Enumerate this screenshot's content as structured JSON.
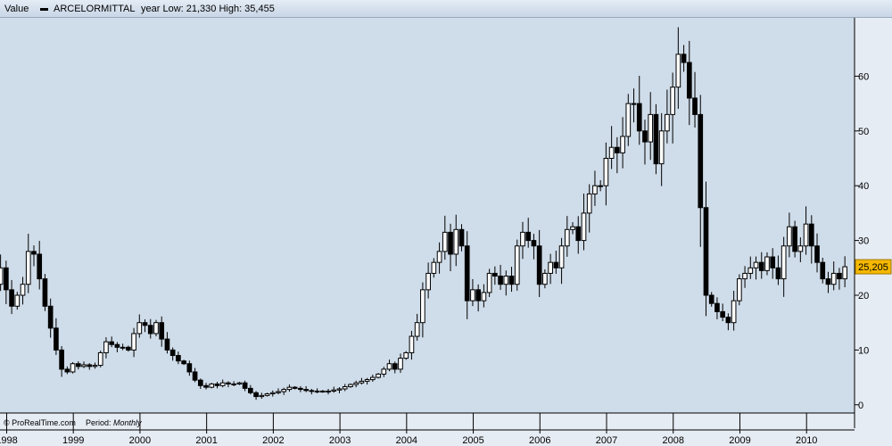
{
  "header": {
    "value_label": "Value",
    "series_name": "ARCELORMITTAL",
    "stats_text": "year Low: 21,330 High: 35,455"
  },
  "footer": {
    "copyright": "© ProRealTime.com",
    "period_label": "Period:",
    "period_value": "Monthly"
  },
  "colors": {
    "plot_bg": "#cfdce9",
    "outer_bg": "#e6ecf4",
    "up_fill": "#ffffff",
    "down_fill": "#000000",
    "last_price_bg": "#f5b800"
  },
  "chart_data": {
    "type": "candlestick",
    "title": "ARCELORMITTAL",
    "period": "Monthly",
    "x_ticks": [
      "1998",
      "1999",
      "2000",
      "2001",
      "2002",
      "2003",
      "2004",
      "2005",
      "2006",
      "2007",
      "2008",
      "2009",
      "2010"
    ],
    "x_range": [
      1997.9,
      2010.72
    ],
    "y_ticks": [
      0,
      10,
      20,
      30,
      40,
      50,
      60
    ],
    "ylim": [
      -1.5,
      70
    ],
    "last_value": 25.205,
    "last_value_label": "25,205",
    "close_series": [
      24.5,
      22.0,
      25.0,
      21.0,
      18.0,
      20.0,
      22.0,
      28.0,
      27.5,
      23.0,
      18.0,
      14.0,
      10.0,
      6.5,
      6.0,
      7.5,
      7.0,
      7.3,
      7.0,
      7.2,
      9.5,
      11.5,
      11.0,
      10.5,
      10.5,
      10.0,
      13.0,
      15.0,
      14.5,
      13.0,
      15.0,
      12.0,
      10.0,
      9.0,
      8.0,
      7.5,
      6.0,
      4.5,
      3.5,
      3.2,
      3.8,
      3.5,
      4.0,
      3.8,
      3.8,
      4.0,
      3.0,
      2.2,
      1.5,
      1.7,
      2.0,
      2.2,
      2.4,
      2.8,
      3.2,
      3.0,
      2.8,
      2.6,
      2.5,
      2.5,
      2.4,
      2.5,
      2.7,
      2.9,
      3.3,
      3.7,
      4.0,
      4.3,
      4.6,
      5.0,
      5.6,
      6.5,
      7.5,
      6.5,
      8.5,
      9.5,
      12.5,
      15.0,
      21.0,
      24.0,
      26.0,
      28.0,
      31.5,
      27.5,
      32.0,
      29.0,
      19.0,
      21.0,
      19.0,
      20.5,
      24.0,
      23.5,
      22.0,
      23.5,
      22.0,
      29.0,
      31.5,
      30.0,
      29.0,
      22.0,
      24.0,
      26.0,
      25.0,
      29.0,
      32.0,
      32.5,
      30.0,
      35.0,
      38.5,
      40.0,
      40.0,
      45.0,
      47.0,
      46.0,
      49.0,
      55.0,
      55.0,
      50.0,
      48.0,
      53.0,
      44.0,
      50.0,
      53.0,
      58.0,
      64.0,
      62.5,
      56.0,
      53.0,
      36.0,
      20.0,
      18.5,
      17.0,
      16.0,
      15.0,
      19.0,
      23.0,
      24.0,
      25.0,
      26.0,
      24.5,
      27.0,
      25.0,
      23.0,
      29.0,
      32.5,
      28.0,
      29.0,
      33.0,
      29.0,
      26.0,
      23.0,
      22.0,
      24.0,
      23.0,
      25.2
    ]
  }
}
